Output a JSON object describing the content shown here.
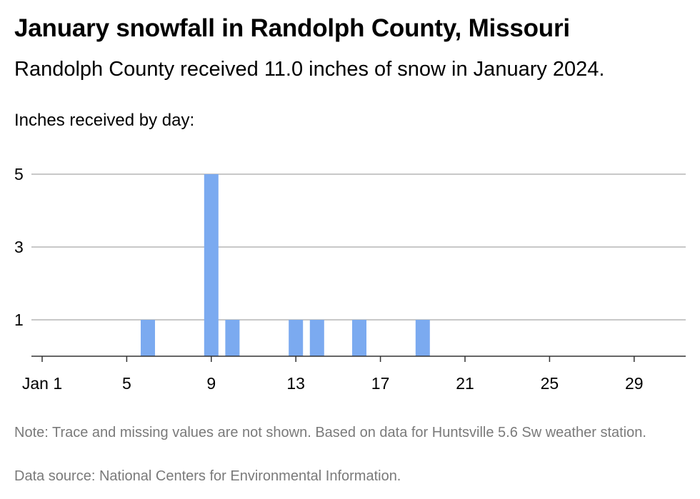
{
  "header": {
    "title": "January snowfall in Randolph County, Missouri",
    "subtitle": "Randolph County received 11.0 inches of snow in January 2024."
  },
  "footer": {
    "note": "Note: Trace and missing values are not shown. Based on data for Huntsville 5.6 Sw weather station.",
    "source": "Data source: National Centers for Environmental Information."
  },
  "chart_data": {
    "type": "bar",
    "title": "January snowfall in Randolph County, Missouri",
    "ylabel": "Inches received by day:",
    "xlabel": "",
    "x_domain": [
      1,
      31
    ],
    "ylim": [
      0,
      5
    ],
    "y_ticks": [
      1,
      3,
      5
    ],
    "x_ticks": [
      {
        "day": 1,
        "label": "Jan 1"
      },
      {
        "day": 5,
        "label": "5"
      },
      {
        "day": 9,
        "label": "9"
      },
      {
        "day": 13,
        "label": "13"
      },
      {
        "day": 17,
        "label": "17"
      },
      {
        "day": 21,
        "label": "21"
      },
      {
        "day": 25,
        "label": "25"
      },
      {
        "day": 29,
        "label": "29"
      }
    ],
    "grid": true,
    "bar_color": "#7baaf0",
    "points": [
      {
        "day": 6,
        "inches": 1
      },
      {
        "day": 9,
        "inches": 5
      },
      {
        "day": 10,
        "inches": 1
      },
      {
        "day": 13,
        "inches": 1
      },
      {
        "day": 14,
        "inches": 1
      },
      {
        "day": 16,
        "inches": 1
      },
      {
        "day": 19,
        "inches": 1
      }
    ]
  }
}
